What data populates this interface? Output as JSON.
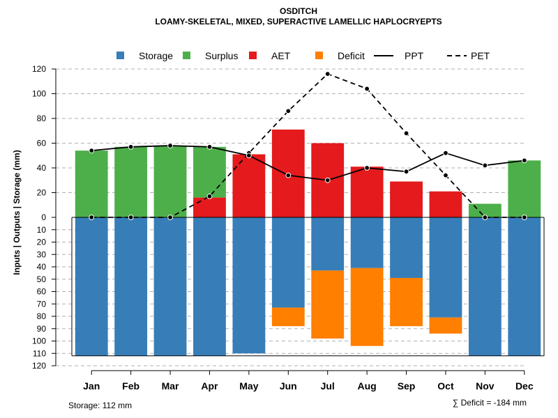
{
  "chart_data": {
    "type": "bar",
    "title": "OSDITCH",
    "subtitle": "LOAMY-SKELETAL, MIXED, SUPERACTIVE LAMELLIC HAPLOCRYEPTS",
    "ylabel": "Inputs | Outputs | Storage    (mm)",
    "categories": [
      "Jan",
      "Feb",
      "Mar",
      "Apr",
      "May",
      "Jun",
      "Jul",
      "Aug",
      "Sep",
      "Oct",
      "Nov",
      "Dec"
    ],
    "ylim_top": [
      0,
      120
    ],
    "ylim_bottom": [
      0,
      120
    ],
    "yticks_top": [
      "0",
      "20",
      "40",
      "60",
      "80",
      "100",
      "120"
    ],
    "yticks_bottom": [
      "10",
      "20",
      "30",
      "40",
      "50",
      "60",
      "70",
      "80",
      "90",
      "100",
      "110",
      "120"
    ],
    "legend": [
      {
        "label": "Storage",
        "kind": "square",
        "color": "#377EB8"
      },
      {
        "label": "Surplus",
        "kind": "square",
        "color": "#4DAF4A"
      },
      {
        "label": "AET",
        "kind": "square",
        "color": "#E41A1C"
      },
      {
        "label": "Deficit",
        "kind": "square",
        "color": "#FF7F00"
      },
      {
        "label": "PPT",
        "kind": "solid-line",
        "color": "#000000"
      },
      {
        "label": "PET",
        "kind": "dashed-line",
        "color": "#000000"
      }
    ],
    "series": [
      {
        "name": "AET",
        "color": "#E41A1C",
        "values": [
          0,
          0,
          0,
          16,
          51,
          71,
          60,
          41,
          29,
          21,
          0,
          0
        ]
      },
      {
        "name": "Surplus",
        "color": "#4DAF4A",
        "values": [
          54,
          57,
          58,
          41,
          0,
          0,
          0,
          0,
          0,
          0,
          11,
          46
        ]
      },
      {
        "name": "Storage",
        "color": "#377EB8",
        "values": [
          112,
          112,
          112,
          112,
          110,
          73,
          43,
          41,
          49,
          81,
          112,
          112
        ]
      },
      {
        "name": "Deficit",
        "color": "#FF7F00",
        "values": [
          0,
          0,
          0,
          0,
          0,
          15,
          55,
          63,
          39,
          13,
          0,
          0
        ]
      },
      {
        "name": "PPT",
        "color": "#000000",
        "values": [
          54,
          57,
          58,
          57,
          50,
          34,
          30,
          40,
          37,
          52,
          42,
          46
        ]
      },
      {
        "name": "PET",
        "color": "#000000",
        "values": [
          0,
          0,
          0,
          17,
          52,
          86,
          116,
          104,
          68,
          34,
          0,
          0
        ]
      }
    ],
    "storage_note": "Storage: 112 mm",
    "deficit_note": "∑ Deficit = -184 mm",
    "storage_capacity": 112,
    "grid": true,
    "legend_position": "top"
  }
}
